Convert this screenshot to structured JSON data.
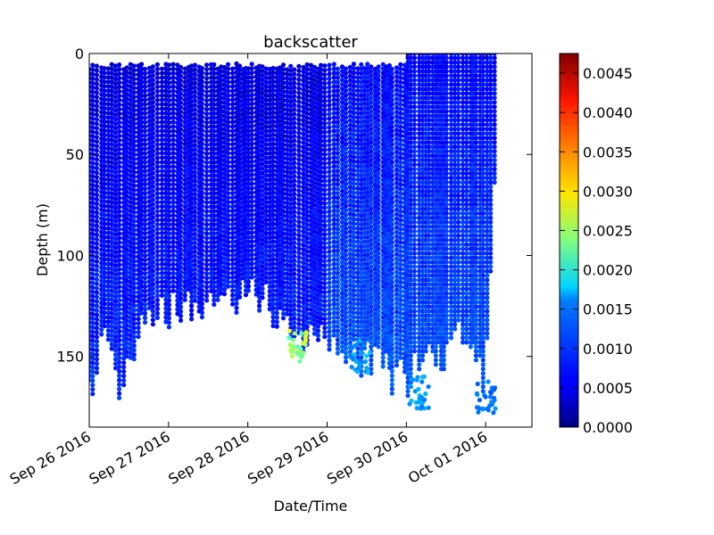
{
  "chart_data": {
    "type": "scatter",
    "title": "backscatter",
    "xlabel": "Date/Time",
    "ylabel": "Depth (m)",
    "x_axis": {
      "kind": "date",
      "range": [
        "2016-09-26",
        "2016-10-01T14:00"
      ],
      "ticks": [
        "Sep 26 2016",
        "Sep 27 2016",
        "Sep 28 2016",
        "Sep 29 2016",
        "Sep 30 2016",
        "Oct 01 2016"
      ],
      "tick_dates": [
        "2016-09-26",
        "2016-09-27",
        "2016-09-28",
        "2016-09-29",
        "2016-09-30",
        "2016-10-01"
      ]
    },
    "y_axis": {
      "inverted": true,
      "range": [
        0,
        185
      ],
      "ticks": [
        "0",
        "50",
        "100",
        "150"
      ],
      "tick_values": [
        0,
        50,
        100,
        150
      ]
    },
    "colorbar": {
      "colormap": "jet",
      "range": [
        0,
        0.00475
      ],
      "ticks": [
        "0.0000",
        "0.0005",
        "0.0010",
        "0.0015",
        "0.0020",
        "0.0025",
        "0.0030",
        "0.0035",
        "0.0040",
        "0.0045"
      ],
      "tick_values": [
        0,
        0.0005,
        0.001,
        0.0015,
        0.002,
        0.0025,
        0.003,
        0.0035,
        0.004,
        0.0045
      ]
    },
    "grid": false,
    "profiles_bottom": [
      [
        "2016-09-26T00:00",
        185
      ],
      [
        "2016-09-26T03:00",
        150
      ],
      [
        "2016-09-26T06:00",
        148
      ],
      [
        "2016-09-26T09:00",
        175
      ],
      [
        "2016-09-26T12:00",
        158
      ],
      [
        "2016-09-26T18:00",
        140
      ],
      [
        "2016-09-27T00:00",
        135
      ],
      [
        "2016-09-27T06:00",
        132
      ],
      [
        "2016-09-27T12:00",
        130
      ],
      [
        "2016-09-27T18:00",
        130
      ],
      [
        "2016-09-28T00:00",
        125
      ],
      [
        "2016-09-28T06:00",
        130
      ],
      [
        "2016-09-28T12:00",
        140
      ],
      [
        "2016-09-28T18:00",
        148
      ],
      [
        "2016-09-29T00:00",
        150
      ],
      [
        "2016-09-29T06:00",
        155
      ],
      [
        "2016-09-29T12:00",
        160
      ],
      [
        "2016-09-29T18:00",
        165
      ],
      [
        "2016-09-30T00:00",
        170
      ],
      [
        "2016-09-30T06:00",
        160
      ],
      [
        "2016-09-30T12:00",
        155
      ],
      [
        "2016-09-30T18:00",
        150
      ],
      [
        "2016-10-01T00:00",
        178
      ],
      [
        "2016-10-01T03:00",
        50
      ]
    ],
    "features": [
      {
        "x": "2016-09-28T15:00",
        "y": 145,
        "value": 0.0028
      },
      {
        "x": "2016-09-29T10:00",
        "y": 150,
        "value": 0.0015
      },
      {
        "x": "2016-09-30T04:00",
        "y": 168,
        "value": 0.0014
      },
      {
        "x": "2016-10-01T00:00",
        "y": 170,
        "value": 0.0013
      }
    ]
  }
}
